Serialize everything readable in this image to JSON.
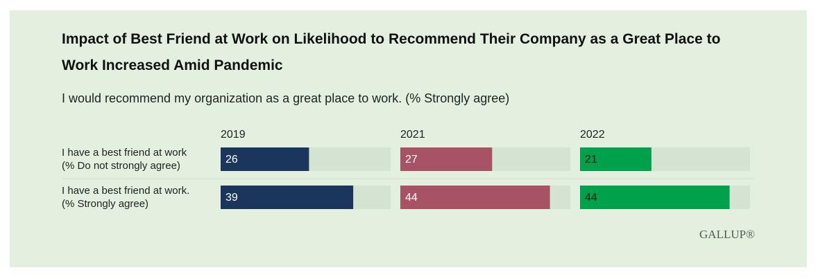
{
  "chart_data": {
    "type": "bar",
    "title": "Impact of Best Friend at Work on Likelihood to Recommend Their Company as a Great Place to Work Increased Amid Pandemic",
    "subtitle": "I would recommend my organization as a great place to work. (% Strongly agree)",
    "categories": [
      [
        "I have a best friend at work",
        "(% Do not strongly agree)"
      ],
      [
        "I have a best friend at work.",
        "(% Strongly agree)"
      ]
    ],
    "series": [
      {
        "name": "2019",
        "color": "#1b365d",
        "label_color": "#ffffff",
        "values": [
          26,
          39
        ]
      },
      {
        "name": "2021",
        "color": "#a85266",
        "label_color": "#ffffff",
        "values": [
          27,
          44
        ]
      },
      {
        "name": "2022",
        "color": "#00a14b",
        "label_color": "#1a1a1a",
        "values": [
          21,
          44
        ]
      }
    ],
    "xlim": [
      0,
      50
    ],
    "source": "GALLUP®"
  }
}
